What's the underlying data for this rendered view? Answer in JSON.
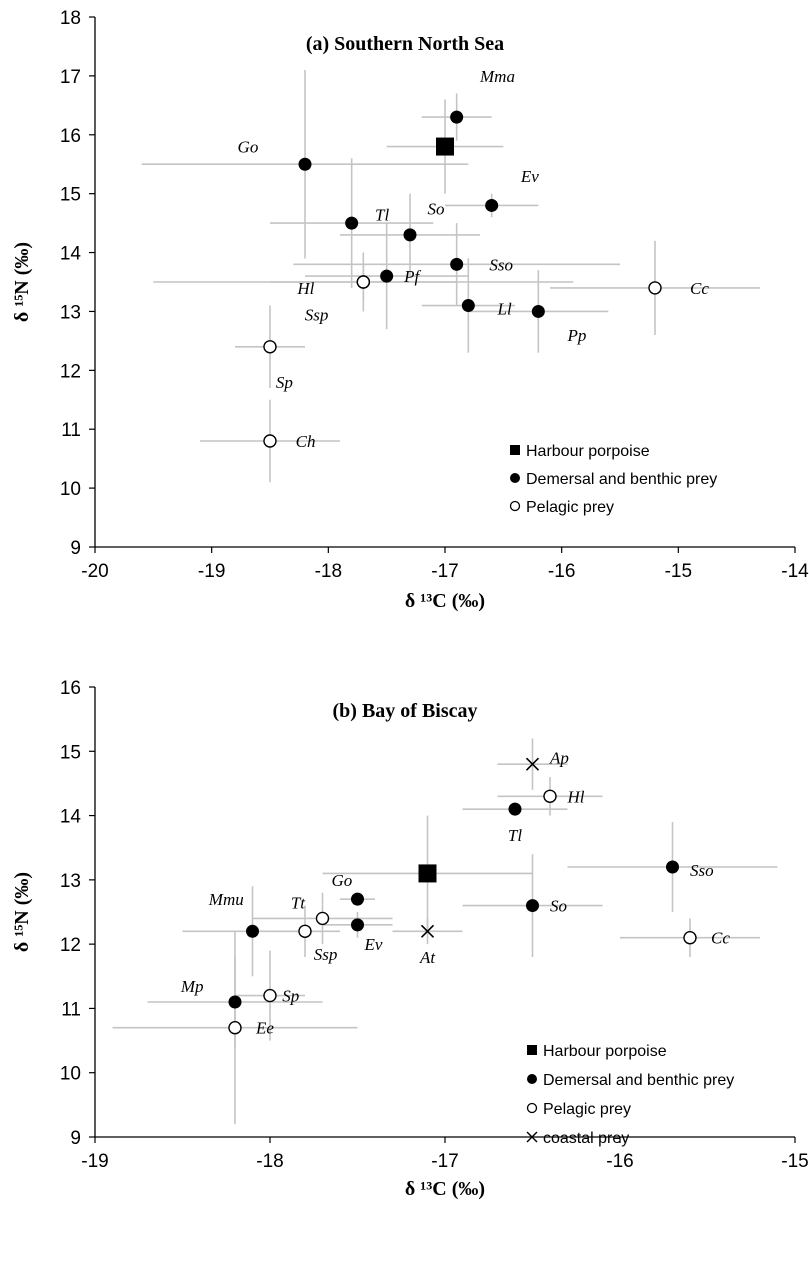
{
  "chart_data": [
    {
      "type": "scatter",
      "title": "(a) Southern North Sea",
      "xlabel": "δ ¹³C (‰)",
      "ylabel": "δ ¹⁵N (‰)",
      "xlim": [
        -20,
        -14
      ],
      "ylim": [
        9,
        18
      ],
      "xticks": [
        "-20",
        "-19",
        "-18",
        "-17",
        "-16",
        "-15",
        "-14"
      ],
      "yticks": [
        "9",
        "10",
        "11",
        "12",
        "13",
        "14",
        "15",
        "16",
        "17",
        "18"
      ],
      "error_bars": true,
      "legend_position": "bottom-right",
      "legend": [
        {
          "marker": "square",
          "label": "Harbour porpoise"
        },
        {
          "marker": "filled-circle",
          "label": "Demersal and benthic prey"
        },
        {
          "marker": "open-circle",
          "label": "Pelagic prey"
        }
      ],
      "points": [
        {
          "label": "",
          "marker": "square",
          "x": -17.0,
          "y": 15.8,
          "xerr": 0.5,
          "yerr": 0.8
        },
        {
          "label": "Mma",
          "marker": "filled-circle",
          "x": -16.9,
          "y": 16.3,
          "xerr": 0.3,
          "yerr": 0.4,
          "lx": 0.2,
          "ly": 0.7
        },
        {
          "label": "Go",
          "marker": "filled-circle",
          "x": -18.2,
          "y": 15.5,
          "xerr": 1.4,
          "yerr": 1.6,
          "lx": -0.4,
          "ly": 0.3
        },
        {
          "label": "Ev",
          "marker": "filled-circle",
          "x": -16.6,
          "y": 14.8,
          "xerr": 0.4,
          "yerr": 0.2,
          "lx": 0.25,
          "ly": 0.5
        },
        {
          "label": "Tl",
          "marker": "filled-circle",
          "x": -17.8,
          "y": 14.5,
          "xerr": 0.7,
          "yerr": 1.1,
          "lx": 0.2,
          "ly": 0.15
        },
        {
          "label": "So",
          "marker": "filled-circle",
          "x": -17.3,
          "y": 14.3,
          "xerr": 0.6,
          "yerr": 0.7,
          "lx": 0.15,
          "ly": 0.45
        },
        {
          "label": "Sso",
          "marker": "filled-circle",
          "x": -16.9,
          "y": 13.8,
          "xerr": 1.4,
          "yerr": 0.7,
          "lx": 0.28,
          "ly": 0.0
        },
        {
          "label": "Pf",
          "marker": "filled-circle",
          "x": -17.5,
          "y": 13.6,
          "xerr": 0.7,
          "yerr": 0.9,
          "lx": 0.15,
          "ly": 0.0
        },
        {
          "label": "Hl",
          "marker": "open-circle",
          "x": -17.7,
          "y": 13.5,
          "xerr": 1.8,
          "yerr": 0.5,
          "lx": -0.42,
          "ly": -0.1
        },
        {
          "label": "Ssp",
          "marker": "open-circle",
          "x": -17.7,
          "y": 13.5,
          "xerr": 0.8,
          "yerr": 0.3,
          "lx": -0.3,
          "ly": -0.55
        },
        {
          "label": "Ll",
          "marker": "filled-circle",
          "x": -16.8,
          "y": 13.1,
          "xerr": 0.4,
          "yerr": 0.8,
          "lx": 0.25,
          "ly": -0.05
        },
        {
          "label": "Pp",
          "marker": "filled-circle",
          "x": -16.2,
          "y": 13.0,
          "xerr": 0.6,
          "yerr": 0.7,
          "lx": 0.25,
          "ly": -0.4
        },
        {
          "label": "Cc",
          "marker": "open-circle",
          "x": -15.2,
          "y": 13.4,
          "xerr": 0.9,
          "yerr": 0.8,
          "lx": 0.3,
          "ly": 0.0
        },
        {
          "label": "Sp",
          "marker": "open-circle",
          "x": -18.5,
          "y": 12.4,
          "xerr": 0.3,
          "yerr": 0.7,
          "lx": 0.05,
          "ly": -0.6
        },
        {
          "label": "Ch",
          "marker": "open-circle",
          "x": -18.5,
          "y": 10.8,
          "xerr": 0.6,
          "yerr": 0.7,
          "lx": 0.22,
          "ly": 0.0
        }
      ]
    },
    {
      "type": "scatter",
      "title": "(b) Bay of Biscay",
      "xlabel": "δ ¹³C (‰)",
      "ylabel": "δ ¹⁵N (‰)",
      "xlim": [
        -19,
        -15
      ],
      "ylim": [
        9,
        16
      ],
      "xticks": [
        "-19",
        "-18",
        "-17",
        "-16",
        "-15"
      ],
      "yticks": [
        "9",
        "10",
        "11",
        "12",
        "13",
        "14",
        "15",
        "16"
      ],
      "error_bars": true,
      "legend_position": "bottom-right",
      "legend": [
        {
          "marker": "square",
          "label": "Harbour porpoise"
        },
        {
          "marker": "filled-circle",
          "label": "Demersal and benthic prey"
        },
        {
          "marker": "open-circle",
          "label": "Pelagic prey"
        },
        {
          "marker": "cross",
          "label": "coastal prey"
        }
      ],
      "points": [
        {
          "label": "",
          "marker": "square",
          "x": -17.1,
          "y": 13.1,
          "xerr": 0.6,
          "yerr": 0.9
        },
        {
          "label": "Ap",
          "marker": "cross",
          "x": -16.5,
          "y": 14.8,
          "xerr": 0.2,
          "yerr": 0.4,
          "lx": 0.1,
          "ly": 0.1
        },
        {
          "label": "Hl",
          "marker": "open-circle",
          "x": -16.4,
          "y": 14.3,
          "xerr": 0.3,
          "yerr": 0.3,
          "lx": 0.1,
          "ly": 0.0
        },
        {
          "label": "Tl",
          "marker": "filled-circle",
          "x": -16.6,
          "y": 14.1,
          "xerr": 0.3,
          "yerr": 0.1,
          "lx": 0.0,
          "ly": -0.4
        },
        {
          "label": "Sso",
          "marker": "filled-circle",
          "x": -15.7,
          "y": 13.2,
          "xerr": 0.6,
          "yerr": 0.7,
          "lx": 0.1,
          "ly": -0.05
        },
        {
          "label": "So",
          "marker": "filled-circle",
          "x": -16.5,
          "y": 12.6,
          "xerr": 0.4,
          "yerr": 0.8,
          "lx": 0.1,
          "ly": 0.0
        },
        {
          "label": "Cc",
          "marker": "open-circle",
          "x": -15.6,
          "y": 12.1,
          "xerr": 0.4,
          "yerr": 0.3,
          "lx": 0.12,
          "ly": 0.0
        },
        {
          "label": "Go",
          "marker": "filled-circle",
          "x": -17.5,
          "y": 12.7,
          "xerr": 0.1,
          "yerr": 0.1,
          "lx": -0.03,
          "ly": 0.3
        },
        {
          "label": "Ev",
          "marker": "filled-circle",
          "x": -17.5,
          "y": 12.3,
          "xerr": 0.2,
          "yerr": 0.2,
          "lx": 0.04,
          "ly": -0.3
        },
        {
          "label": "Tt",
          "marker": "open-circle",
          "x": -17.7,
          "y": 12.4,
          "xerr": 0.4,
          "yerr": 0.4,
          "lx": -0.1,
          "ly": 0.25
        },
        {
          "label": "Ssp",
          "marker": "open-circle",
          "x": -17.8,
          "y": 12.2,
          "xerr": 0.2,
          "yerr": 0.4,
          "lx": 0.05,
          "ly": -0.35
        },
        {
          "label": "At",
          "marker": "cross",
          "x": -17.1,
          "y": 12.2,
          "xerr": 0.2,
          "yerr": 0.2,
          "lx": 0.0,
          "ly": -0.4
        },
        {
          "label": "Mmu",
          "marker": "filled-circle",
          "x": -18.1,
          "y": 12.2,
          "xerr": 0.4,
          "yerr": 0.7,
          "lx": -0.05,
          "ly": 0.5
        },
        {
          "label": "Mp",
          "marker": "filled-circle",
          "x": -18.2,
          "y": 11.1,
          "xerr": 0.5,
          "yerr": 0.7,
          "lx": -0.18,
          "ly": 0.25
        },
        {
          "label": "Sp",
          "marker": "open-circle",
          "x": -18.0,
          "y": 11.2,
          "xerr": 0.2,
          "yerr": 0.7,
          "lx": 0.07,
          "ly": 0.0
        },
        {
          "label": "Ee",
          "marker": "open-circle",
          "x": -18.2,
          "y": 10.7,
          "xerr": 0.7,
          "yerr": 1.5,
          "lx": 0.12,
          "ly": 0.0
        }
      ]
    }
  ]
}
